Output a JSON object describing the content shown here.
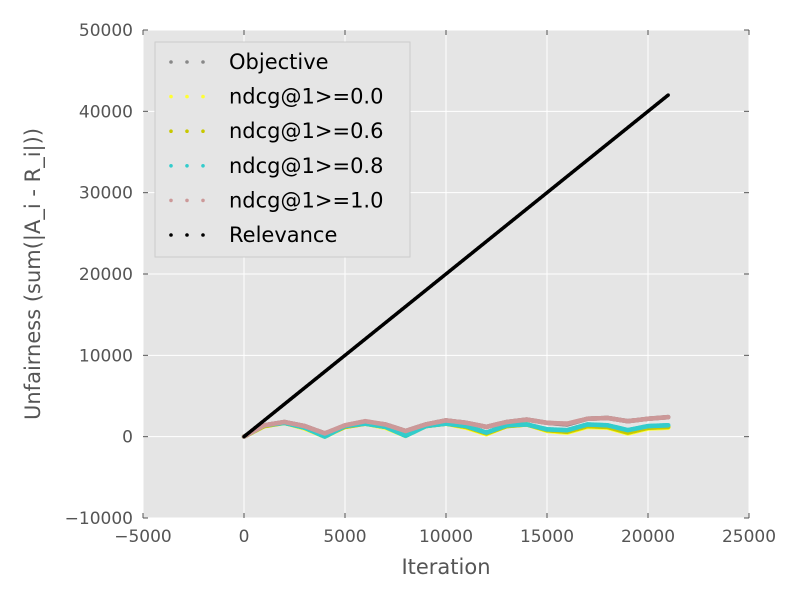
{
  "chart_data": {
    "type": "scatter",
    "title": "",
    "xlabel": "Iteration",
    "ylabel": "Unfairness (sum(|A_i - R_i|))",
    "xlim": [
      -5000,
      25000
    ],
    "ylim": [
      -10000,
      50000
    ],
    "xticks": [
      -5000,
      0,
      5000,
      10000,
      15000,
      20000,
      25000
    ],
    "yticks": [
      -10000,
      0,
      10000,
      20000,
      30000,
      40000,
      50000
    ],
    "xtick_labels": [
      "−5000",
      "0",
      "5000",
      "10000",
      "15000",
      "20000",
      "25000"
    ],
    "ytick_labels": [
      "−10000",
      "0",
      "10000",
      "20000",
      "30000",
      "40000",
      "50000"
    ],
    "grid": true,
    "background": "#e5e5e5",
    "legend_position": "upper-left",
    "series": [
      {
        "name": "Objective",
        "color": "#888888",
        "x": [
          0,
          1000,
          2000,
          3000,
          4000,
          5000,
          6000,
          7000,
          8000,
          9000,
          10000,
          11000,
          12000,
          13000,
          14000,
          15000,
          16000,
          17000,
          18000,
          19000,
          20000,
          21000
        ],
        "y": [
          0,
          1400,
          1800,
          1300,
          400,
          1300,
          1800,
          1500,
          700,
          1500,
          2000,
          1700,
          1200,
          1800,
          2100,
          1700,
          1500,
          2200,
          2300,
          1900,
          2200,
          2400
        ]
      },
      {
        "name": "ndcg@1>=0.0",
        "color": "#ffff33",
        "x": [
          0,
          1000,
          2000,
          3000,
          4000,
          5000,
          6000,
          7000,
          8000,
          9000,
          10000,
          11000,
          12000,
          13000,
          14000,
          15000,
          16000,
          17000,
          18000,
          19000,
          20000,
          21000
        ],
        "y": [
          0,
          1300,
          1700,
          1000,
          0,
          1200,
          1600,
          1100,
          100,
          1300,
          1600,
          1100,
          300,
          1300,
          1500,
          700,
          500,
          1200,
          1100,
          400,
          1000,
          1100
        ]
      },
      {
        "name": "ndcg@1>=0.6",
        "color": "#c8c800",
        "x": [
          0,
          1000,
          2000,
          3000,
          4000,
          5000,
          6000,
          7000,
          8000,
          9000,
          10000,
          11000,
          12000,
          13000,
          14000,
          15000,
          16000,
          17000,
          18000,
          19000,
          20000,
          21000
        ],
        "y": [
          0,
          1300,
          1700,
          1100,
          100,
          1200,
          1600,
          1200,
          200,
          1300,
          1600,
          1200,
          400,
          1300,
          1500,
          800,
          600,
          1300,
          1200,
          500,
          1100,
          1200
        ]
      },
      {
        "name": "ndcg@1>=0.8",
        "color": "#33cccc",
        "x": [
          0,
          1000,
          2000,
          3000,
          4000,
          5000,
          6000,
          7000,
          8000,
          9000,
          10000,
          11000,
          12000,
          13000,
          14000,
          15000,
          16000,
          17000,
          18000,
          19000,
          20000,
          21000
        ],
        "y": [
          0,
          1400,
          1700,
          1100,
          0,
          1300,
          1600,
          1200,
          100,
          1300,
          1600,
          1300,
          500,
          1400,
          1500,
          900,
          800,
          1500,
          1400,
          800,
          1300,
          1400
        ]
      },
      {
        "name": "ndcg@1>=1.0",
        "color": "#cc9999",
        "x": [
          0,
          1000,
          2000,
          3000,
          4000,
          5000,
          6000,
          7000,
          8000,
          9000,
          10000,
          11000,
          12000,
          13000,
          14000,
          15000,
          16000,
          17000,
          18000,
          19000,
          20000,
          21000
        ],
        "y": [
          0,
          1400,
          1800,
          1300,
          400,
          1400,
          1900,
          1500,
          700,
          1500,
          2000,
          1700,
          1200,
          1800,
          2100,
          1700,
          1600,
          2200,
          2300,
          1900,
          2200,
          2400
        ]
      },
      {
        "name": "Relevance",
        "color": "#000000",
        "x": [
          0,
          21000
        ],
        "y": [
          0,
          42000
        ]
      }
    ]
  }
}
